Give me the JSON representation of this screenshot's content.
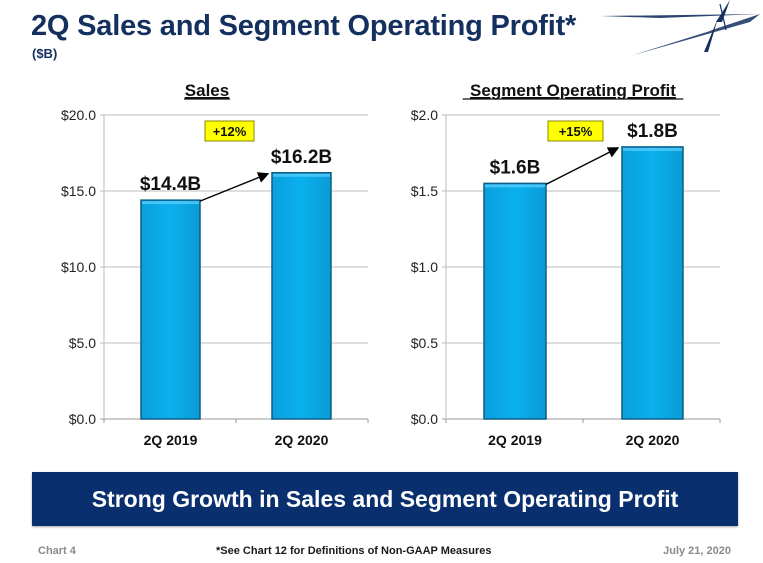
{
  "header": {
    "title": "2Q Sales and Segment Operating Profit*",
    "subtitle": "($B)"
  },
  "colors": {
    "title": "#14305f",
    "bar": "#0aa9e8",
    "bar_edge": "#0b5f86",
    "banner": "#0a2f6e",
    "callout": "#ffff00"
  },
  "chart_data": [
    {
      "type": "bar",
      "title": "Sales",
      "categories": [
        "2Q 2019",
        "2Q 2020"
      ],
      "values": [
        14.4,
        16.2
      ],
      "data_labels": [
        "$14.4B",
        "$16.2B"
      ],
      "ylim": [
        0,
        20
      ],
      "yticks": [
        0,
        5,
        10,
        15,
        20
      ],
      "ytick_labels": [
        "$0.0",
        "$5.0",
        "$10.0",
        "$15.0",
        "$20.0"
      ],
      "xlabel": "",
      "ylabel": "",
      "grid": true,
      "annotation": {
        "label": "+12%",
        "type": "growth-arrow",
        "from": "2Q 2019",
        "to": "2Q 2020"
      }
    },
    {
      "type": "bar",
      "title": "Segment Operating Profit",
      "categories": [
        "2Q 2019",
        "2Q 2020"
      ],
      "values": [
        1.55,
        1.79
      ],
      "data_labels": [
        "$1.6B",
        "$1.8B"
      ],
      "ylim": [
        0,
        2.0
      ],
      "yticks": [
        0,
        0.5,
        1.0,
        1.5,
        2.0
      ],
      "ytick_labels": [
        "$0.0",
        "$0.5",
        "$1.0",
        "$1.5",
        "$2.0"
      ],
      "xlabel": "",
      "ylabel": "",
      "grid": true,
      "annotation": {
        "label": "+15%",
        "type": "growth-arrow",
        "from": "2Q 2019",
        "to": "2Q 2020"
      }
    }
  ],
  "banner": {
    "text": "Strong Growth in Sales and Segment Operating Profit"
  },
  "footer": {
    "left": "Chart 4",
    "middle": "*See Chart 12 for Definitions of Non-GAAP Measures",
    "right": "July 21, 2020"
  },
  "logo": {
    "icon": "star-logo-icon"
  }
}
